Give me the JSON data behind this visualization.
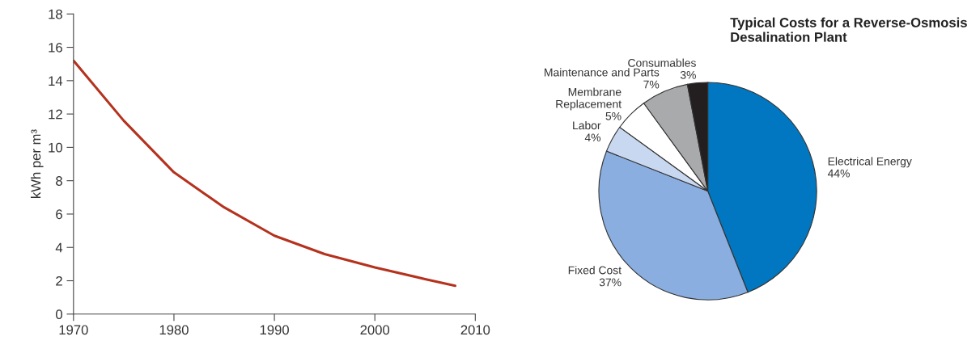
{
  "chart_data": [
    {
      "type": "line",
      "ylabel": "kWh per m³",
      "x": [
        1970,
        1975,
        1980,
        1985,
        1990,
        1995,
        2000,
        2005,
        2008
      ],
      "series": [
        {
          "color": "#b5321e",
          "values": [
            15.2,
            11.6,
            8.5,
            6.4,
            4.7,
            3.6,
            2.8,
            2.1,
            1.7
          ]
        }
      ],
      "xlim": [
        1970,
        2010
      ],
      "xticks": [
        1970,
        1980,
        1990,
        2000,
        2010
      ],
      "ylim": [
        0,
        18
      ],
      "yticks": [
        0,
        2,
        4,
        6,
        8,
        10,
        12,
        14,
        16,
        18
      ],
      "grid": false,
      "legend": false,
      "marker": "none",
      "line_style": "solid"
    },
    {
      "type": "pie",
      "title": "Typical Costs for a Reverse-Osmosis\nDesalination Plant",
      "categories": [
        "Electrical Energy",
        "Fixed Cost",
        "Labor",
        "Membrane\nReplacement",
        "Maintenance and Parts",
        "Consumables"
      ],
      "values": [
        44,
        37,
        4,
        5,
        7,
        3
      ],
      "colors": [
        "#0077c0",
        "#8aaee0",
        "#c8d8f0",
        "#ffffff",
        "#a8aaac",
        "#231f20"
      ],
      "value_labels": [
        "44%",
        "37%",
        "4%",
        "5%",
        "7%",
        "3%"
      ]
    }
  ]
}
